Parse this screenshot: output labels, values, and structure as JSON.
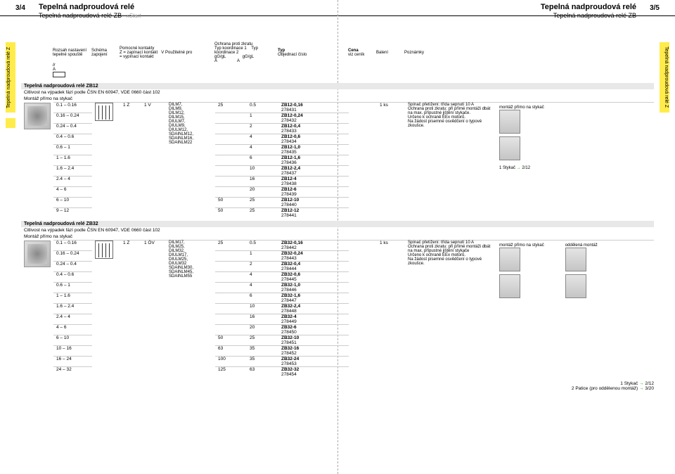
{
  "pageLeft": "3/4",
  "pageRight": "3/5",
  "titleMain": "Tepelná nadproudová relé",
  "subtitleMain": "Tepelná nadproudová relé ZB",
  "vtabText": "Tepelná nadproudová relé Z",
  "xstartLogo": "xStart",
  "colHeaders": {
    "c1": "Rozsah nastavení tepelné spouště",
    "c1sub1": "Ir",
    "c1sub2": "A",
    "c2": "Schéma zapojení",
    "c3": "Pomocné kontakty",
    "c3sub1": "Z = zapínací kontakt",
    "c3sub2": "V = vypínací kontakt",
    "c4": "Použitelné pro",
    "c5": "Ochrana proti zkratu",
    "c5sub1": "Typ koordinace 1",
    "c5sub2": "Typ koordinace 2",
    "c5sub3": "gG/gL",
    "c5sub4": "A",
    "c6": "Typ",
    "c6sub": "Objednací číslo",
    "c7": "Cena",
    "c7sub": "viz ceník",
    "c8": "Balení",
    "c9": "Poznámky"
  },
  "section1": {
    "title": "Tepelná nadproudová relé ZB12",
    "note1": "Citlivost na výpadek fází podle ČSN EN 60947, VDE 0660 část 102",
    "note2": "Montáž přímo na stykač",
    "z": "1 Z",
    "v": "1 V",
    "compat": "DILM7, DILM9, DILM12, DILM15, DIULM7, DIULM9, DIULM12, SDAINLM12, SDAINLM16, SDAINLM22",
    "pack": "1 ks",
    "rightNotes": [
      "Spínač přetížení: třída sepnutí 10 A",
      "Ochrana proti zkratu: při přímé montáži dbát na max. přípustné jištění stykače.",
      "Určeno k ochraně EEx motorů.",
      "Na žádost písemné osvědčení o typové zkoušce."
    ],
    "mountNote": "montáž přímo na stykač",
    "footer1": "1 Stykač",
    "footer1ref": "2/12",
    "rows": [
      {
        "r": "0.1 – 0.16",
        "k1": "25",
        "k2": "0.5",
        "typ": "ZB12-0,16",
        "obj": "278431"
      },
      {
        "r": "0.16 – 0.24",
        "k1": "",
        "k2": "1",
        "typ": "ZB12-0,24",
        "obj": "278432"
      },
      {
        "r": "0.24 – 0.4",
        "k1": "",
        "k2": "2",
        "typ": "ZB12-0,4",
        "obj": "278433"
      },
      {
        "r": "0.4 – 0.6",
        "k1": "",
        "k2": "4",
        "typ": "ZB12-0,6",
        "obj": "278434"
      },
      {
        "r": "0.6 – 1",
        "k1": "",
        "k2": "4",
        "typ": "ZB12-1,0",
        "obj": "278435"
      },
      {
        "r": "1 – 1.6",
        "k1": "",
        "k2": "6",
        "typ": "ZB12-1,6",
        "obj": "278436"
      },
      {
        "r": "1.6 – 2.4",
        "k1": "",
        "k2": "10",
        "typ": "ZB12-2,4",
        "obj": "278437"
      },
      {
        "r": "2.4 – 4",
        "k1": "",
        "k2": "16",
        "typ": "ZB12-4",
        "obj": "278438"
      },
      {
        "r": "4 – 6",
        "k1": "",
        "k2": "20",
        "typ": "ZB12-6",
        "obj": "278439"
      },
      {
        "r": "6 – 10",
        "k1": "50",
        "k2": "25",
        "typ": "ZB12-10",
        "obj": "278440"
      },
      {
        "r": "9 – 12",
        "k1": "50",
        "k2": "25",
        "typ": "ZB12-12",
        "obj": "278441"
      }
    ]
  },
  "section2": {
    "title": "Tepelná nadproudová relé ZB32",
    "note1": "Citlivost na výpadek fází podle ČSN EN 60947, VDE 0660 část 102",
    "note2": "Montáž přímo na stykač",
    "z": "1 Z",
    "v": "1 ÖV",
    "compat": "DILM17, DILM25, DILM32, DIULM17, DIULM25, DIULM32 SDAINLM30, SDAINLM45, SDAINLM55",
    "pack": "1 ks",
    "rightNotes": [
      "Spínač přetížení: třída sepnutí 10 A",
      "Ochrana proti zkratu: při přímé montáži dbát na max. přípustné jištění stykače",
      "Určeno k ochraně EEx motorů.",
      "Na žádost písemné osvědčení o typové zkoušce."
    ],
    "mountNote1": "montáž přímo na stykač",
    "mountNote2": "oddělená montáž",
    "footer1": "1 Stykač",
    "footer1ref": "2/12",
    "footer2": "2 Patice (pro oddělenou montáž)",
    "footer2ref": "3/20",
    "rows": [
      {
        "r": "0.1 – 0.16",
        "k1": "25",
        "k2": "0.5",
        "typ": "ZB32-0,16",
        "obj": "278442"
      },
      {
        "r": "0.16 – 0.24",
        "k1": "",
        "k2": "1",
        "typ": "ZB32-0,24",
        "obj": "278443"
      },
      {
        "r": "0.24 – 0.4",
        "k1": "",
        "k2": "2",
        "typ": "ZB32-0,4",
        "obj": "278444"
      },
      {
        "r": "0.4 – 0.6",
        "k1": "",
        "k2": "4",
        "typ": "ZB32-0,6",
        "obj": "278445"
      },
      {
        "r": "0.6 – 1",
        "k1": "",
        "k2": "4",
        "typ": "ZB32-1,0",
        "obj": "278446"
      },
      {
        "r": "1 – 1.6",
        "k1": "",
        "k2": "6",
        "typ": "ZB32-1,6",
        "obj": "278447"
      },
      {
        "r": "1.6 – 2.4",
        "k1": "",
        "k2": "10",
        "typ": "ZB32-2,4",
        "obj": "278448"
      },
      {
        "r": "2.4 – 4",
        "k1": "",
        "k2": "16",
        "typ": "ZB32-4",
        "obj": "278449"
      },
      {
        "r": "4 – 6",
        "k1": "",
        "k2": "20",
        "typ": "ZB32-6",
        "obj": "278450"
      },
      {
        "r": "6 – 10",
        "k1": "50",
        "k2": "25",
        "typ": "ZB32-10",
        "obj": "278451"
      },
      {
        "r": "10 – 16",
        "k1": "63",
        "k2": "35",
        "typ": "ZB32-16",
        "obj": "278452"
      },
      {
        "r": "16 – 24",
        "k1": "100",
        "k2": "35",
        "typ": "ZB32-24",
        "obj": "278453"
      },
      {
        "r": "24 – 32",
        "k1": "125",
        "k2": "63",
        "typ": "ZB32-32",
        "obj": "278454"
      }
    ]
  }
}
